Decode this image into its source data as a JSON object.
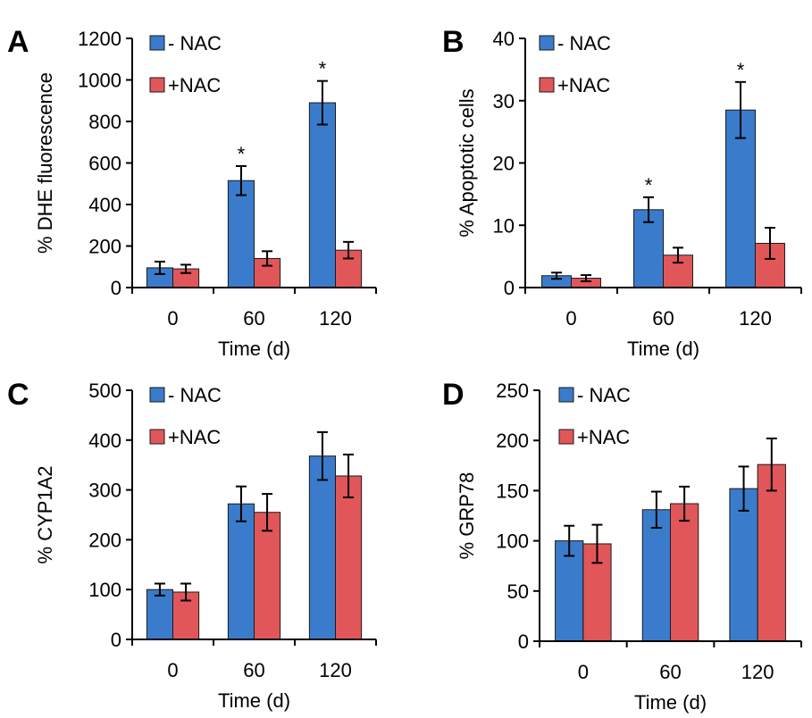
{
  "colors": {
    "minus_nac": "#3A7CCB",
    "plus_nac": "#E15759",
    "bar_edge": "#1a1a1a",
    "axis": "#000000"
  },
  "chart_data": [
    {
      "panel": "A",
      "type": "bar",
      "categories": [
        "0",
        "60",
        "120"
      ],
      "xlabel": "Time (d)",
      "ylabel": "% DHE fluorescence",
      "ylim": [
        0,
        1200
      ],
      "yticks": [
        "0",
        "200",
        "400",
        "600",
        "800",
        "1000",
        "1200"
      ],
      "legend": "top-left",
      "series": [
        {
          "name": "- NAC",
          "values": [
            95,
            515,
            890
          ],
          "errors": [
            30,
            70,
            105
          ]
        },
        {
          "name": "+NAC",
          "values": [
            90,
            140,
            180
          ],
          "errors": [
            20,
            35,
            40
          ]
        }
      ],
      "significance": [
        {
          "series": 0,
          "category": 1,
          "label": "*"
        },
        {
          "series": 0,
          "category": 2,
          "label": "*"
        }
      ]
    },
    {
      "panel": "B",
      "type": "bar",
      "categories": [
        "0",
        "60",
        "120"
      ],
      "xlabel": "Time (d)",
      "ylabel": "% Apoptotic cells",
      "ylim": [
        0,
        40
      ],
      "yticks": [
        "0",
        "10",
        "20",
        "30",
        "40"
      ],
      "legend": "top-left",
      "series": [
        {
          "name": "- NAC",
          "values": [
            1.9,
            12.5,
            28.5
          ],
          "errors": [
            0.5,
            2.0,
            4.5
          ]
        },
        {
          "name": "+NAC",
          "values": [
            1.5,
            5.2,
            7.1
          ],
          "errors": [
            0.5,
            1.2,
            2.5
          ]
        }
      ],
      "significance": [
        {
          "series": 0,
          "category": 1,
          "label": "*"
        },
        {
          "series": 0,
          "category": 2,
          "label": "*"
        }
      ]
    },
    {
      "panel": "C",
      "type": "bar",
      "categories": [
        "0",
        "60",
        "120"
      ],
      "xlabel": "Time (d)",
      "ylabel": "% CYP1A2",
      "ylim": [
        0,
        500
      ],
      "yticks": [
        "0",
        "100",
        "200",
        "300",
        "400",
        "500"
      ],
      "legend": "top-left",
      "series": [
        {
          "name": "- NAC",
          "values": [
            100,
            272,
            368
          ],
          "errors": [
            12,
            35,
            48
          ]
        },
        {
          "name": "+NAC",
          "values": [
            95,
            255,
            328
          ],
          "errors": [
            17,
            37,
            43
          ]
        }
      ],
      "significance": []
    },
    {
      "panel": "D",
      "type": "bar",
      "categories": [
        "0",
        "60",
        "120"
      ],
      "xlabel": "Time (d)",
      "ylabel": "% GRP78",
      "ylim": [
        0,
        250
      ],
      "yticks": [
        "0",
        "50",
        "100",
        "150",
        "200",
        "250"
      ],
      "legend": "top-left",
      "series": [
        {
          "name": "- NAC",
          "values": [
            100,
            131,
            152
          ],
          "errors": [
            15,
            18,
            22
          ]
        },
        {
          "name": "+NAC",
          "values": [
            97,
            137,
            176
          ],
          "errors": [
            19,
            17,
            26
          ]
        }
      ],
      "significance": []
    }
  ]
}
